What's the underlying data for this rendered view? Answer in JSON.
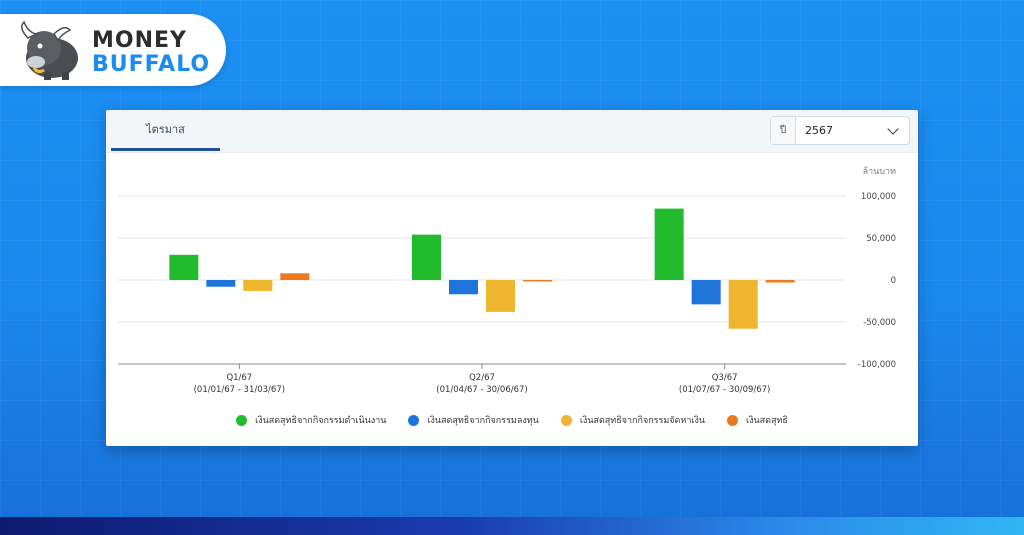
{
  "brand": {
    "line1": "MONEY",
    "line2": "BUFFALO"
  },
  "card": {
    "tab_label": "ไตรมาส",
    "year_prefix": "ปี",
    "year_value": "2567"
  },
  "colors": {
    "operating": "#22bb2e",
    "investing": "#1f74d9",
    "financing": "#efb52e",
    "net": "#ec7a1c"
  },
  "chart_data": {
    "type": "bar",
    "unit_label": "ล้านบาท",
    "categories": [
      "Q1/67",
      "Q2/67",
      "Q3/67"
    ],
    "category_sublabels": [
      "(01/01/67 - 31/03/67)",
      "(01/04/67 - 30/06/67)",
      "(01/07/67 - 30/09/67)"
    ],
    "series": [
      {
        "name": "เงินสดสุทธิจากกิจกรรมดำเนินงาน",
        "color": "#22bb2e",
        "values": [
          30000,
          54000,
          85000
        ]
      },
      {
        "name": "เงินสดสุทธิจากกิจกรรมลงทุน",
        "color": "#1f74d9",
        "values": [
          -8000,
          -17000,
          -29000
        ]
      },
      {
        "name": "เงินสดสุทธิจากกิจกรรมจัดหาเงิน",
        "color": "#efb52e",
        "values": [
          -13000,
          -38000,
          -58000
        ]
      },
      {
        "name": "เงินสดสุทธิ",
        "color": "#ec7a1c",
        "values": [
          8000,
          -1000,
          -3000
        ]
      }
    ],
    "ylim": [
      -100000,
      100000
    ],
    "yticks": [
      100000,
      50000,
      0,
      -50000,
      -100000
    ],
    "ytick_labels": [
      "100,000",
      "50,000",
      "0",
      "-50,000",
      "-100,000"
    ],
    "y_axis_position": "right",
    "legend_position": "bottom",
    "grid": true
  }
}
